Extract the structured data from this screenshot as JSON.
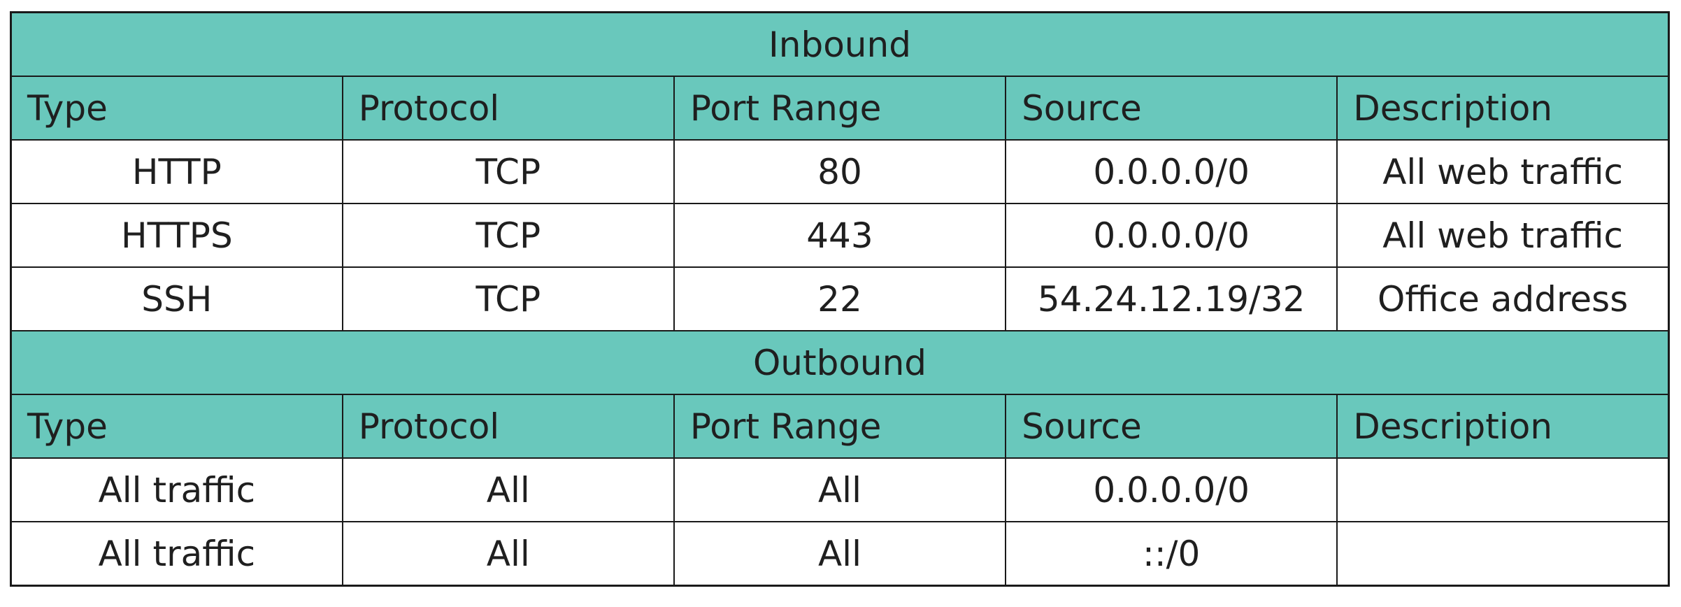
{
  "inbound": {
    "title": "Inbound",
    "headers": [
      "Type",
      "Protocol",
      "Port Range",
      "Source",
      "Description"
    ],
    "rows": [
      [
        "HTTP",
        "TCP",
        "80",
        "0.0.0.0/0",
        "All web traffic"
      ],
      [
        "HTTPS",
        "TCP",
        "443",
        "0.0.0.0/0",
        "All web traffic"
      ],
      [
        "SSH",
        "TCP",
        "22",
        "54.24.12.19/32",
        "Office address"
      ]
    ]
  },
  "outbound": {
    "title": "Outbound",
    "headers": [
      "Type",
      "Protocol",
      "Port Range",
      "Source",
      "Description"
    ],
    "rows": [
      [
        "All traffic",
        "All",
        "All",
        "0.0.0.0/0",
        ""
      ],
      [
        "All traffic",
        "All",
        "All",
        "::/0",
        ""
      ]
    ]
  },
  "colors": {
    "header_fill": "#69c8bc",
    "border": "#1a1a1a"
  }
}
